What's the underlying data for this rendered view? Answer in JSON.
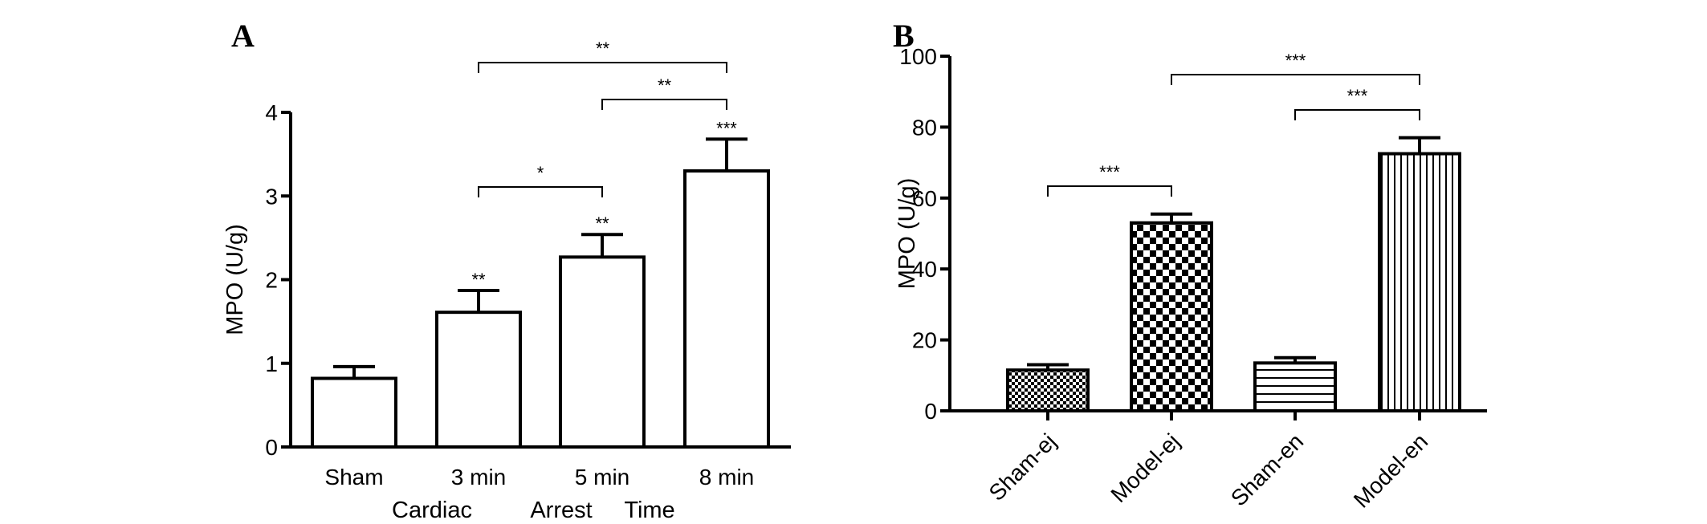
{
  "chart_data": [
    {
      "panel": "A",
      "type": "bar",
      "categories": [
        "Sham",
        "3 min",
        "5 min",
        "8 min"
      ],
      "values": [
        0.82,
        1.61,
        2.27,
        3.3
      ],
      "errors": [
        0.14,
        0.26,
        0.27,
        0.38
      ],
      "bar_fills": [
        "#ffffff",
        "#ffffff",
        "#ffffff",
        "#ffffff"
      ],
      "bar_patterns": [
        "none",
        "none",
        "none",
        "none"
      ],
      "bar_sig": [
        "",
        "**",
        "**",
        "***"
      ],
      "xlabel_words": [
        "Cardiac",
        "Arrest",
        "Time"
      ],
      "ylabel": "MPO (U/g)",
      "ylim": [
        0,
        4
      ],
      "yticks": [
        0,
        1,
        2,
        3,
        4
      ],
      "brackets": [
        {
          "from": 1,
          "to": 2,
          "label": "*"
        },
        {
          "from": 2,
          "to": 3,
          "label": "**"
        },
        {
          "from": 1,
          "to": 3,
          "label": "**"
        }
      ],
      "grid": false,
      "legend": "none"
    },
    {
      "panel": "B",
      "type": "bar",
      "categories": [
        "Sham-ej",
        "Model-ej",
        "Sham-en",
        "Model-en"
      ],
      "values": [
        11.5,
        53.0,
        13.5,
        72.5
      ],
      "errors": [
        1.5,
        2.5,
        1.5,
        4.5
      ],
      "bar_patterns": [
        "fine-checker",
        "coarse-checker",
        "horizontal-lines",
        "vertical-lines"
      ],
      "bar_sig": [
        "",
        "",
        "",
        ""
      ],
      "ylabel": "MPO (U/g)",
      "ylim": [
        0,
        100
      ],
      "yticks": [
        0,
        20,
        40,
        60,
        80,
        100
      ],
      "brackets": [
        {
          "from": 0,
          "to": 1,
          "label": "***"
        },
        {
          "from": 2,
          "to": 3,
          "label": "***"
        },
        {
          "from": 1,
          "to": 3,
          "label": "***"
        }
      ],
      "grid": false,
      "legend": "none"
    }
  ],
  "panel_labels": [
    "A",
    "B"
  ],
  "colors": {
    "ink": "#000000",
    "bar_fill": "#ffffff"
  }
}
